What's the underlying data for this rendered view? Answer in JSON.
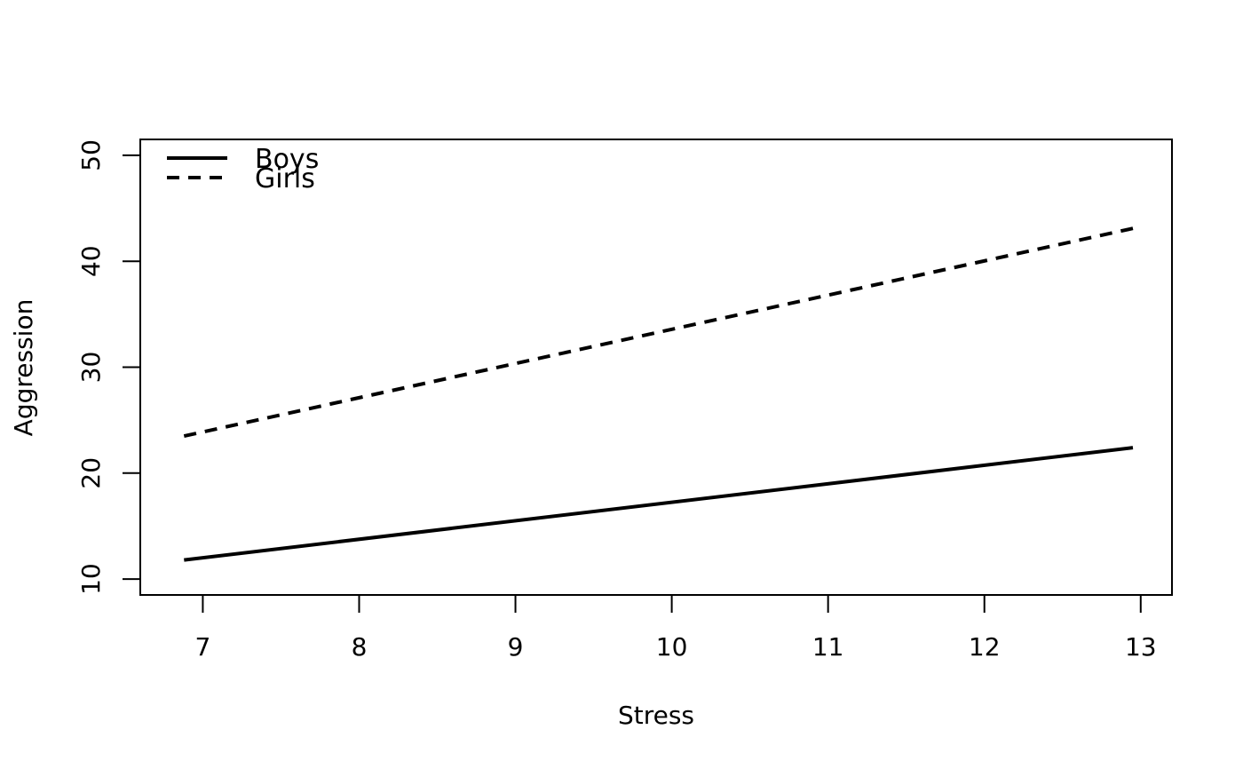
{
  "chart_data": {
    "type": "line",
    "xlabel": "Stress",
    "ylabel": "Aggression",
    "xlim": [
      6.6,
      13.2
    ],
    "ylim": [
      8.5,
      51.5
    ],
    "xticks": [
      7,
      8,
      9,
      10,
      11,
      12,
      13
    ],
    "yticks": [
      10,
      20,
      30,
      40,
      50
    ],
    "legend_position": "top-left",
    "series": [
      {
        "name": "Boys",
        "line_style": "solid",
        "color": "#000000",
        "x": [
          6.88,
          12.95
        ],
        "y": [
          11.8,
          22.4
        ]
      },
      {
        "name": "Girls",
        "line_style": "dashed",
        "color": "#000000",
        "x": [
          6.88,
          12.95
        ],
        "y": [
          23.5,
          43.1
        ]
      }
    ]
  }
}
